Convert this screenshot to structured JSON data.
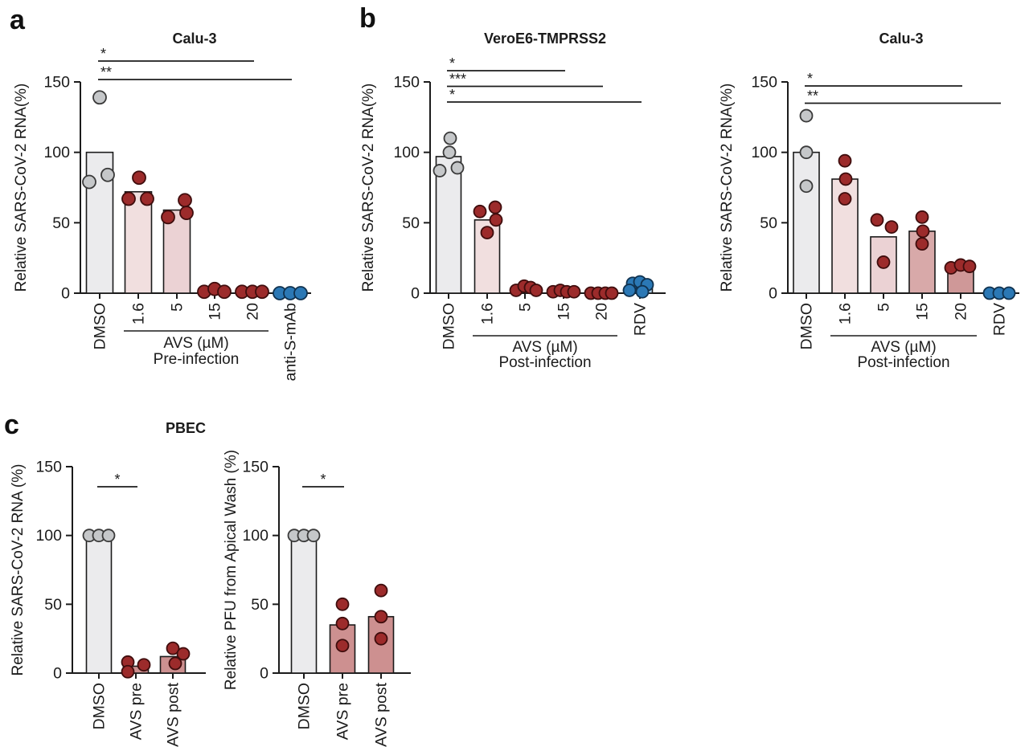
{
  "figure": {
    "background": "#ffffff",
    "axis_color": "#1b1b1b",
    "panels": [
      {
        "letter": "a"
      },
      {
        "letter": "b"
      },
      {
        "letter": "c"
      }
    ]
  },
  "chart_data": [
    {
      "id": "a-calu3-pre",
      "panel": "a",
      "type": "bar",
      "title": "Calu-3",
      "ylabel": "Relative SARS-CoV-2 RNA(%)",
      "yticks": [
        0,
        50,
        100,
        150
      ],
      "ylim": [
        0,
        150
      ],
      "columns": [
        {
          "label": "DMSO",
          "bar": 100,
          "bar_color": "#EBEBED",
          "dot_color": "#C5C7C9",
          "dot_stroke": "#3a3a3a",
          "points": [
            {
              "v": 139,
              "dx": 0
            },
            {
              "v": 79,
              "dx": -13
            },
            {
              "v": 84,
              "dx": 10
            }
          ]
        },
        {
          "label": "1.6",
          "bar": 72,
          "bar_color": "#F1DFDF",
          "dot_color": "#9C2B2B",
          "dot_stroke": "#3f0d0d",
          "points": [
            {
              "v": 82,
              "dx": 1
            },
            {
              "v": 67,
              "dx": -12
            },
            {
              "v": 67,
              "dx": 11
            }
          ]
        },
        {
          "label": "5",
          "bar": 59,
          "bar_color": "#EBD2D4",
          "dot_color": "#9C2B2B",
          "dot_stroke": "#3f0d0d",
          "points": [
            {
              "v": 66,
              "dx": 10
            },
            {
              "v": 54,
              "dx": -11
            },
            {
              "v": 57,
              "dx": 12
            }
          ]
        },
        {
          "label": "15",
          "bar": 0,
          "bar_color": "#D8A9A9",
          "dot_color": "#9C2B2B",
          "dot_stroke": "#3f0d0d",
          "points": [
            {
              "v": 1,
              "dx": -13
            },
            {
              "v": 3,
              "dx": 0
            },
            {
              "v": 1,
              "dx": 12
            }
          ]
        },
        {
          "label": "20",
          "bar": 0,
          "bar_color": "#CF9898",
          "dot_color": "#9C2B2B",
          "dot_stroke": "#3f0d0d",
          "points": [
            {
              "v": 1,
              "dx": -13
            },
            {
              "v": 1,
              "dx": 0
            },
            {
              "v": 1,
              "dx": 12
            }
          ]
        },
        {
          "label": "anti-S-mAb",
          "bar": 0,
          "bar_color": "#AFCFE9",
          "dot_color": "#2B78B5",
          "dot_stroke": "#10324f",
          "points": [
            {
              "v": 0,
              "dx": -13
            },
            {
              "v": 0,
              "dx": 0
            },
            {
              "v": 0,
              "dx": 13
            }
          ]
        }
      ],
      "sig_lines": [
        {
          "stars": "*",
          "from": 0,
          "to": 4
        },
        {
          "stars": "**",
          "from": 0,
          "to": 5
        }
      ],
      "group_label": {
        "from": 1,
        "to": 4,
        "line1": "AVS (µM)",
        "line2": "Pre-infection"
      }
    },
    {
      "id": "b-veroe6-post",
      "panel": "b",
      "type": "bar",
      "title": "VeroE6-TMPRSS2",
      "ylabel": "Relative SARS-CoV-2 RNA(%)",
      "yticks": [
        0,
        50,
        100,
        150
      ],
      "ylim": [
        0,
        150
      ],
      "columns": [
        {
          "label": "DMSO",
          "bar": 97,
          "bar_color": "#EBEBED",
          "dot_color": "#C5C7C9",
          "dot_stroke": "#3a3a3a",
          "points": [
            {
              "v": 110,
              "dx": 2
            },
            {
              "v": 100,
              "dx": 1
            },
            {
              "v": 87,
              "dx": -11
            },
            {
              "v": 89,
              "dx": 11
            }
          ]
        },
        {
          "label": "1.6",
          "bar": 52,
          "bar_color": "#F1DFDF",
          "dot_color": "#9C2B2B",
          "dot_stroke": "#3f0d0d",
          "points": [
            {
              "v": 58,
              "dx": -9
            },
            {
              "v": 61,
              "dx": 10
            },
            {
              "v": 52,
              "dx": 11
            },
            {
              "v": 43,
              "dx": 0
            }
          ]
        },
        {
          "label": "5",
          "bar": 2,
          "bar_color": "#EBD2D4",
          "dot_color": "#9C2B2B",
          "dot_stroke": "#3f0d0d",
          "points": [
            {
              "v": 2,
              "dx": -11
            },
            {
              "v": 5,
              "dx": -1
            },
            {
              "v": 4,
              "dx": 7
            },
            {
              "v": 2,
              "dx": 14
            }
          ]
        },
        {
          "label": "15",
          "bar": 1,
          "bar_color": "#D8A9A9",
          "dot_color": "#9C2B2B",
          "dot_stroke": "#3f0d0d",
          "points": [
            {
              "v": 1,
              "dx": -13
            },
            {
              "v": 2,
              "dx": -4
            },
            {
              "v": 1,
              "dx": 4
            },
            {
              "v": 1,
              "dx": 13
            }
          ]
        },
        {
          "label": "20",
          "bar": 1,
          "bar_color": "#CF9898",
          "dot_color": "#9C2B2B",
          "dot_stroke": "#3f0d0d",
          "points": [
            {
              "v": 0,
              "dx": -13
            },
            {
              "v": 0,
              "dx": -4
            },
            {
              "v": 0,
              "dx": 5
            },
            {
              "v": 0,
              "dx": 13
            }
          ]
        },
        {
          "label": "RDV",
          "bar": 4,
          "bar_color": "#AFCFE9",
          "dot_color": "#2B78B5",
          "dot_stroke": "#10324f",
          "points": [
            {
              "v": 7,
              "dx": -9
            },
            {
              "v": 8,
              "dx": 0
            },
            {
              "v": 6,
              "dx": 9
            },
            {
              "v": 2,
              "dx": -13
            },
            {
              "v": 1,
              "dx": 3
            }
          ]
        }
      ],
      "sig_lines": [
        {
          "stars": "*",
          "from": 0,
          "to": 3
        },
        {
          "stars": "***",
          "from": 0,
          "to": 4
        },
        {
          "stars": "*",
          "from": 0,
          "to": 5
        }
      ],
      "group_label": {
        "from": 1,
        "to": 4,
        "line1": "AVS (µM)",
        "line2": "Post-infection"
      }
    },
    {
      "id": "b-calu3-post",
      "panel": "b",
      "type": "bar",
      "title": "Calu-3",
      "ylabel": "Relative SARS-CoV-2 RNA(%)",
      "yticks": [
        0,
        50,
        100,
        150
      ],
      "ylim": [
        0,
        150
      ],
      "columns": [
        {
          "label": "DMSO",
          "bar": 100,
          "bar_color": "#EBEBED",
          "dot_color": "#C5C7C9",
          "dot_stroke": "#3a3a3a",
          "points": [
            {
              "v": 126,
              "dx": 0
            },
            {
              "v": 100,
              "dx": 0
            },
            {
              "v": 76,
              "dx": 0
            }
          ]
        },
        {
          "label": "1.6",
          "bar": 81,
          "bar_color": "#F1DFDF",
          "dot_color": "#9C2B2B",
          "dot_stroke": "#3f0d0d",
          "points": [
            {
              "v": 94,
              "dx": 0
            },
            {
              "v": 81,
              "dx": 1
            },
            {
              "v": 67,
              "dx": 0
            }
          ]
        },
        {
          "label": "5",
          "bar": 40,
          "bar_color": "#EBD2D4",
          "dot_color": "#9C2B2B",
          "dot_stroke": "#3f0d0d",
          "points": [
            {
              "v": 52,
              "dx": -8
            },
            {
              "v": 47,
              "dx": 10
            },
            {
              "v": 22,
              "dx": 0
            }
          ]
        },
        {
          "label": "15",
          "bar": 44,
          "bar_color": "#D8A9A9",
          "dot_color": "#9C2B2B",
          "dot_stroke": "#3f0d0d",
          "points": [
            {
              "v": 54,
              "dx": 0
            },
            {
              "v": 44,
              "dx": 1
            },
            {
              "v": 35,
              "dx": 0
            }
          ]
        },
        {
          "label": "20",
          "bar": 18,
          "bar_color": "#CF9898",
          "dot_color": "#9C2B2B",
          "dot_stroke": "#3f0d0d",
          "points": [
            {
              "v": 18,
              "dx": -12
            },
            {
              "v": 20,
              "dx": 0
            },
            {
              "v": 19,
              "dx": 11
            }
          ]
        },
        {
          "label": "RDV",
          "bar": 0,
          "bar_color": "#AFCFE9",
          "dot_color": "#2B78B5",
          "dot_stroke": "#10324f",
          "points": [
            {
              "v": 0,
              "dx": -12
            },
            {
              "v": 0,
              "dx": 0
            },
            {
              "v": 0,
              "dx": 12
            }
          ]
        }
      ],
      "sig_lines": [
        {
          "stars": "*",
          "from": 0,
          "to": 4
        },
        {
          "stars": "**",
          "from": 0,
          "to": 5
        }
      ],
      "group_label": {
        "from": 1,
        "to": 4,
        "line1": "AVS (µM)",
        "line2": "Post-infection"
      }
    },
    {
      "id": "c-pbec-rna",
      "panel": "c",
      "type": "bar",
      "title": "PBEC",
      "ylabel": "Relative SARS-CoV-2 RNA (%)",
      "yticks": [
        0,
        50,
        100,
        150
      ],
      "ylim": [
        0,
        150
      ],
      "columns": [
        {
          "label": "DMSO",
          "bar": 101,
          "bar_color": "#EBEBED",
          "dot_color": "#C5C7C9",
          "dot_stroke": "#3a3a3a",
          "points": [
            {
              "v": 100,
              "dx": -12
            },
            {
              "v": 100,
              "dx": 0
            },
            {
              "v": 100,
              "dx": 12
            }
          ]
        },
        {
          "label": "AVS pre",
          "bar": 5,
          "bar_color": "#CD9090",
          "dot_color": "#9C2B2B",
          "dot_stroke": "#3f0d0d",
          "points": [
            {
              "v": 8,
              "dx": -10
            },
            {
              "v": 1,
              "dx": -10
            },
            {
              "v": 6,
              "dx": 10
            }
          ]
        },
        {
          "label": "AVS post",
          "bar": 12,
          "bar_color": "#CD9090",
          "dot_color": "#9C2B2B",
          "dot_stroke": "#3f0d0d",
          "points": [
            {
              "v": 18,
              "dx": 0
            },
            {
              "v": 7,
              "dx": 3
            },
            {
              "v": 14,
              "dx": 13
            }
          ]
        }
      ],
      "sig_lines": [
        {
          "stars": "*",
          "from": 0,
          "to": 1
        }
      ],
      "group_label": null
    },
    {
      "id": "c-pbec-pfu",
      "panel": "c",
      "type": "bar",
      "title": "",
      "ylabel": "Relative PFU from Apical Wash (%)",
      "yticks": [
        0,
        50,
        100,
        150
      ],
      "ylim": [
        0,
        150
      ],
      "columns": [
        {
          "label": "DMSO",
          "bar": 101,
          "bar_color": "#EBEBED",
          "dot_color": "#C5C7C9",
          "dot_stroke": "#3a3a3a",
          "points": [
            {
              "v": 100,
              "dx": -12
            },
            {
              "v": 100,
              "dx": 0
            },
            {
              "v": 100,
              "dx": 12
            }
          ]
        },
        {
          "label": "AVS pre",
          "bar": 35,
          "bar_color": "#CD9090",
          "dot_color": "#9C2B2B",
          "dot_stroke": "#3f0d0d",
          "points": [
            {
              "v": 50,
              "dx": 0
            },
            {
              "v": 36,
              "dx": 0
            },
            {
              "v": 20,
              "dx": 0
            }
          ]
        },
        {
          "label": "AVS post",
          "bar": 41,
          "bar_color": "#CD9090",
          "dot_color": "#9C2B2B",
          "dot_stroke": "#3f0d0d",
          "points": [
            {
              "v": 60,
              "dx": 0
            },
            {
              "v": 41,
              "dx": 0
            },
            {
              "v": 25,
              "dx": 0
            }
          ]
        }
      ],
      "sig_lines": [
        {
          "stars": "*",
          "from": 0,
          "to": 1
        }
      ],
      "group_label": null
    }
  ]
}
